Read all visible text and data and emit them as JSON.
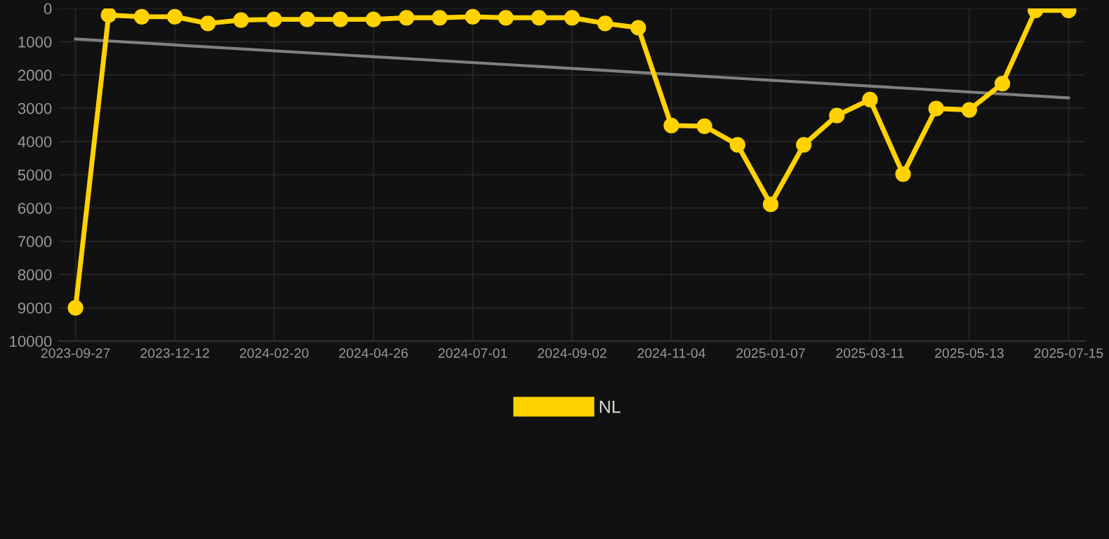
{
  "chart_data": {
    "type": "line",
    "categories": [
      "2023-09-27",
      null,
      null,
      "2023-12-12",
      null,
      null,
      "2024-02-20",
      null,
      null,
      "2024-04-26",
      null,
      null,
      "2024-07-01",
      null,
      null,
      "2024-09-02",
      null,
      null,
      "2024-11-04",
      null,
      null,
      "2025-01-07",
      null,
      null,
      "2025-03-11",
      null,
      null,
      "2025-05-13",
      null,
      null,
      "2025-07-15"
    ],
    "series": [
      {
        "name": "NL",
        "color": "#ffd200",
        "marker": "circle",
        "values": [
          9000,
          200,
          250,
          250,
          450,
          350,
          330,
          330,
          330,
          330,
          280,
          280,
          250,
          280,
          280,
          280,
          450,
          580,
          3520,
          3540,
          4100,
          5890,
          4100,
          3220,
          2740,
          4980,
          3010,
          3050,
          2260,
          60,
          60
        ]
      },
      {
        "color": "#808080",
        "marker": "none",
        "values": [
          920,
          null,
          null,
          null,
          null,
          null,
          null,
          null,
          null,
          null,
          null,
          null,
          null,
          null,
          null,
          null,
          null,
          null,
          null,
          null,
          null,
          null,
          null,
          null,
          null,
          null,
          null,
          null,
          null,
          null,
          2690
        ]
      }
    ],
    "ylim": [
      10000,
      0
    ],
    "yticks": [
      0,
      1000,
      2000,
      3000,
      4000,
      5000,
      6000,
      7000,
      8000,
      9000,
      10000
    ],
    "grid": true,
    "legend": "bottom",
    "line_style": "solid"
  }
}
